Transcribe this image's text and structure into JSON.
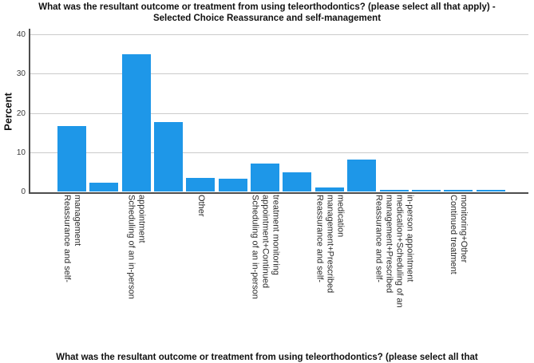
{
  "title": {
    "line1": "What was the resultant outcome or treatment from using teleorthodontics? (please select all that apply) -",
    "line2": "Selected Choice Reassurance and self-management"
  },
  "y_axis": {
    "label": "Percent",
    "tick_labels": [
      "0",
      "10",
      "20",
      "30",
      "40"
    ]
  },
  "x_axis": {
    "caption_visible": "What was the resultant outcome or treatment from using teleorthodontics? (please select all that"
  },
  "colors": {
    "bar": "#1E97E8",
    "gridline": "#CBCBCB",
    "axis": "#4D4D4D",
    "text": "#2B2B2B"
  },
  "chart_data": {
    "type": "bar",
    "title": "What was the resultant outcome or treatment from using teleorthodontics? (please select all that apply) - Selected Choice Reassurance and self-management",
    "xlabel": "What was the resultant outcome or treatment from using teleorthodontics? (please select all that",
    "ylabel": "Percent",
    "ylim": [
      0,
      40
    ],
    "grid": "horizontal",
    "legend": "none",
    "bar_color": "#1E97E8",
    "categories": [
      "Reassurance and self-management",
      "",
      "Scheduling of an in-person appointment",
      "",
      "Other",
      "",
      "Scheduling of an in-person appointment+Continued treatment monitoring",
      "",
      "Reassurance and self-management+Prescribed medication",
      "",
      "Reassurance and self-management+Prescribed medication+Scheduling of an in-person appointment",
      "",
      "Continued treatment monitoring+Other",
      ""
    ],
    "values": [
      16.7,
      2.4,
      35.0,
      17.7,
      3.6,
      3.3,
      7.3,
      4.9,
      1.2,
      8.3,
      0.6,
      0.6,
      0.6,
      0.6
    ],
    "tick_label_lines": [
      [
        "Reassurance and self-",
        "management"
      ],
      [],
      [
        "Scheduling of an in-person",
        "appointment"
      ],
      [],
      [
        "Other"
      ],
      [],
      [
        "Scheduling of an in-person",
        "appointment+Continued",
        "treatment monitoring"
      ],
      [],
      [
        "Reassurance and self-",
        "management+Prescribed",
        "medication"
      ],
      [],
      [
        "Reassurance and self-",
        "management+Prescribed",
        "medication+Scheduling of an",
        "in-person appointment"
      ],
      [],
      [
        "Continued treatment",
        "monitoring+Other"
      ],
      []
    ],
    "y_ticks": [
      0,
      10,
      20,
      30,
      40
    ]
  }
}
